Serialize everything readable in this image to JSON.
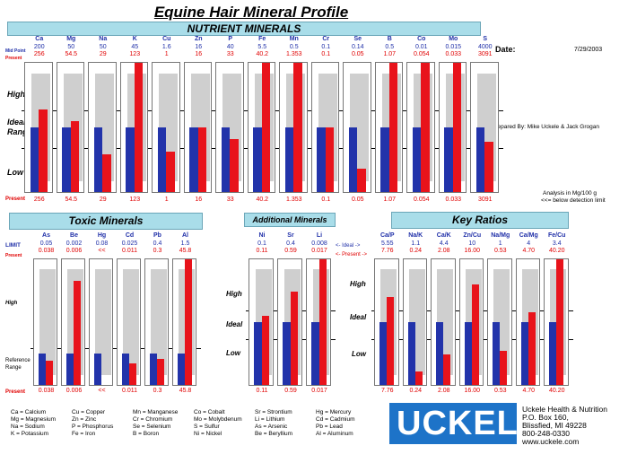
{
  "title": "Equine Hair  Mineral Profile",
  "date_label": "Date:",
  "date_value": "7/29/2003",
  "prepared_by": "Prepared By:  Mike Uckele & Jack Grogan",
  "analysis_note_1": "Analysis in Mg/100 g",
  "analysis_note_2": "<<= below detection limit",
  "colors": {
    "ideal": "#2233aa",
    "present": "#e8131b",
    "band": "#a9dde9",
    "range": "#cfcfcf"
  },
  "chart_data": [
    {
      "type": "bar",
      "title": "NUTRIENT MINERALS",
      "row_labels": {
        "mid": "Mid Point",
        "present": "Present"
      },
      "zone_labels": {
        "high": "High",
        "ideal": "Ideal\nRange",
        "low": "Low"
      },
      "categories": [
        "Ca",
        "Mg",
        "Na",
        "K",
        "Cu",
        "Zn",
        "P",
        "Fe",
        "Mn",
        "Cr",
        "Se",
        "B",
        "Co",
        "Mo",
        "S"
      ],
      "mid_point": [
        "200",
        "50",
        "50",
        "45",
        "1.6",
        "16",
        "40",
        "5.5",
        "0.5",
        "0.1",
        "0.14",
        "0.5",
        "0.01",
        "0.015",
        "4000"
      ],
      "present": [
        "256",
        "54.5",
        "29",
        "123",
        "1",
        "16",
        "33",
        "40.2",
        "1.353",
        "0.1",
        "0.05",
        "1.07",
        "0.054",
        "0.033",
        "3091"
      ],
      "present_fraction": [
        0.64,
        0.55,
        0.29,
        1.0,
        0.31,
        0.5,
        0.41,
        1.0,
        1.0,
        0.5,
        0.18,
        1.0,
        1.0,
        1.0,
        0.39
      ],
      "ideal_fraction": [
        0.5,
        0.5,
        0.5,
        0.5,
        0.5,
        0.5,
        0.5,
        0.5,
        0.5,
        0.5,
        0.5,
        0.5,
        0.5,
        0.5,
        0.5
      ]
    },
    {
      "type": "bar",
      "title": "Toxic Minerals",
      "row_labels": {
        "mid": "LIMIT",
        "present": "Present"
      },
      "zone_labels": {
        "high": "High",
        "ideal": "Reference\nRange"
      },
      "categories": [
        "As",
        "Be",
        "Hg",
        "Cd",
        "Pb",
        "Al"
      ],
      "mid_point": [
        "0.05",
        "0.002",
        "0.08",
        "0.025",
        "0.4",
        "1.5"
      ],
      "present": [
        "0.038",
        "0.006",
        "<<",
        "0.011",
        "0.3",
        "45.8"
      ],
      "present_fraction": [
        0.19,
        0.83,
        0.0,
        0.17,
        0.21,
        1.0
      ],
      "ideal_fraction": [
        0.25,
        0.25,
        0.25,
        0.25,
        0.25,
        0.25
      ]
    },
    {
      "type": "bar",
      "title": "Additional Minerals",
      "row_labels": {
        "mid": "<- Ideal ->",
        "present": "<- Present ->"
      },
      "zone_labels": {
        "high": "High",
        "ideal": "Ideal",
        "low": "Low"
      },
      "categories": [
        "Ni",
        "Sr",
        "Li"
      ],
      "mid_point": [
        "0.1",
        "0.4",
        "0.008"
      ],
      "present": [
        "0.11",
        "0.59",
        "0.017"
      ],
      "present_fraction": [
        0.55,
        0.74,
        1.0
      ],
      "ideal_fraction": [
        0.5,
        0.5,
        0.5
      ]
    },
    {
      "type": "bar",
      "title": "Key Ratios",
      "zone_labels": {
        "high": "High",
        "ideal": "Ideal",
        "low": "Low"
      },
      "categories": [
        "Ca/P",
        "Na/K",
        "Ca/K",
        "Zn/Cu",
        "Na/Mg",
        "Ca/Mg",
        "Fe/Cu"
      ],
      "mid_point": [
        "5.55",
        "1.1",
        "4.4",
        "10",
        "1",
        "4",
        "3.4"
      ],
      "present": [
        "7.76",
        "0.24",
        "2.08",
        "16.00",
        "0.53",
        "4.70",
        "40.20"
      ],
      "present_fraction": [
        0.7,
        0.11,
        0.24,
        0.8,
        0.27,
        0.58,
        1.0
      ],
      "ideal_fraction": [
        0.5,
        0.5,
        0.5,
        0.5,
        0.5,
        0.5,
        0.5
      ]
    }
  ],
  "abbreviations": [
    [
      "Ca = Calcium",
      "Mg = Magnesium",
      "Na = Sodium",
      "K = Potassium"
    ],
    [
      "Cu = Copper",
      "Zn = Zinc",
      "P = Phosphorus",
      "Fe = Iron"
    ],
    [
      "Mn = Manganese",
      "Cr = Chromium",
      "Se = Selenium",
      "B = Boron"
    ],
    [
      "Co = Cobalt",
      "Mo = Molybdenum",
      "S = Sulfur",
      "Ni = Nickel"
    ],
    [
      "Sr = Strontium",
      "Li = Lithium",
      "As = Arsenic",
      "Be = Beryllium"
    ],
    [
      "Hg = Mercury",
      "Cd = Cadmium",
      "Pb = Lead",
      "Al = Aluminum"
    ]
  ],
  "logo_text": "UCKELE",
  "company": {
    "name": "Uckele Health & Nutrition",
    "address1": "P.O. Box 160,",
    "address2": "Blissfied, MI 49228",
    "phone": "800-248-0330",
    "web": "www.uckele.com"
  }
}
